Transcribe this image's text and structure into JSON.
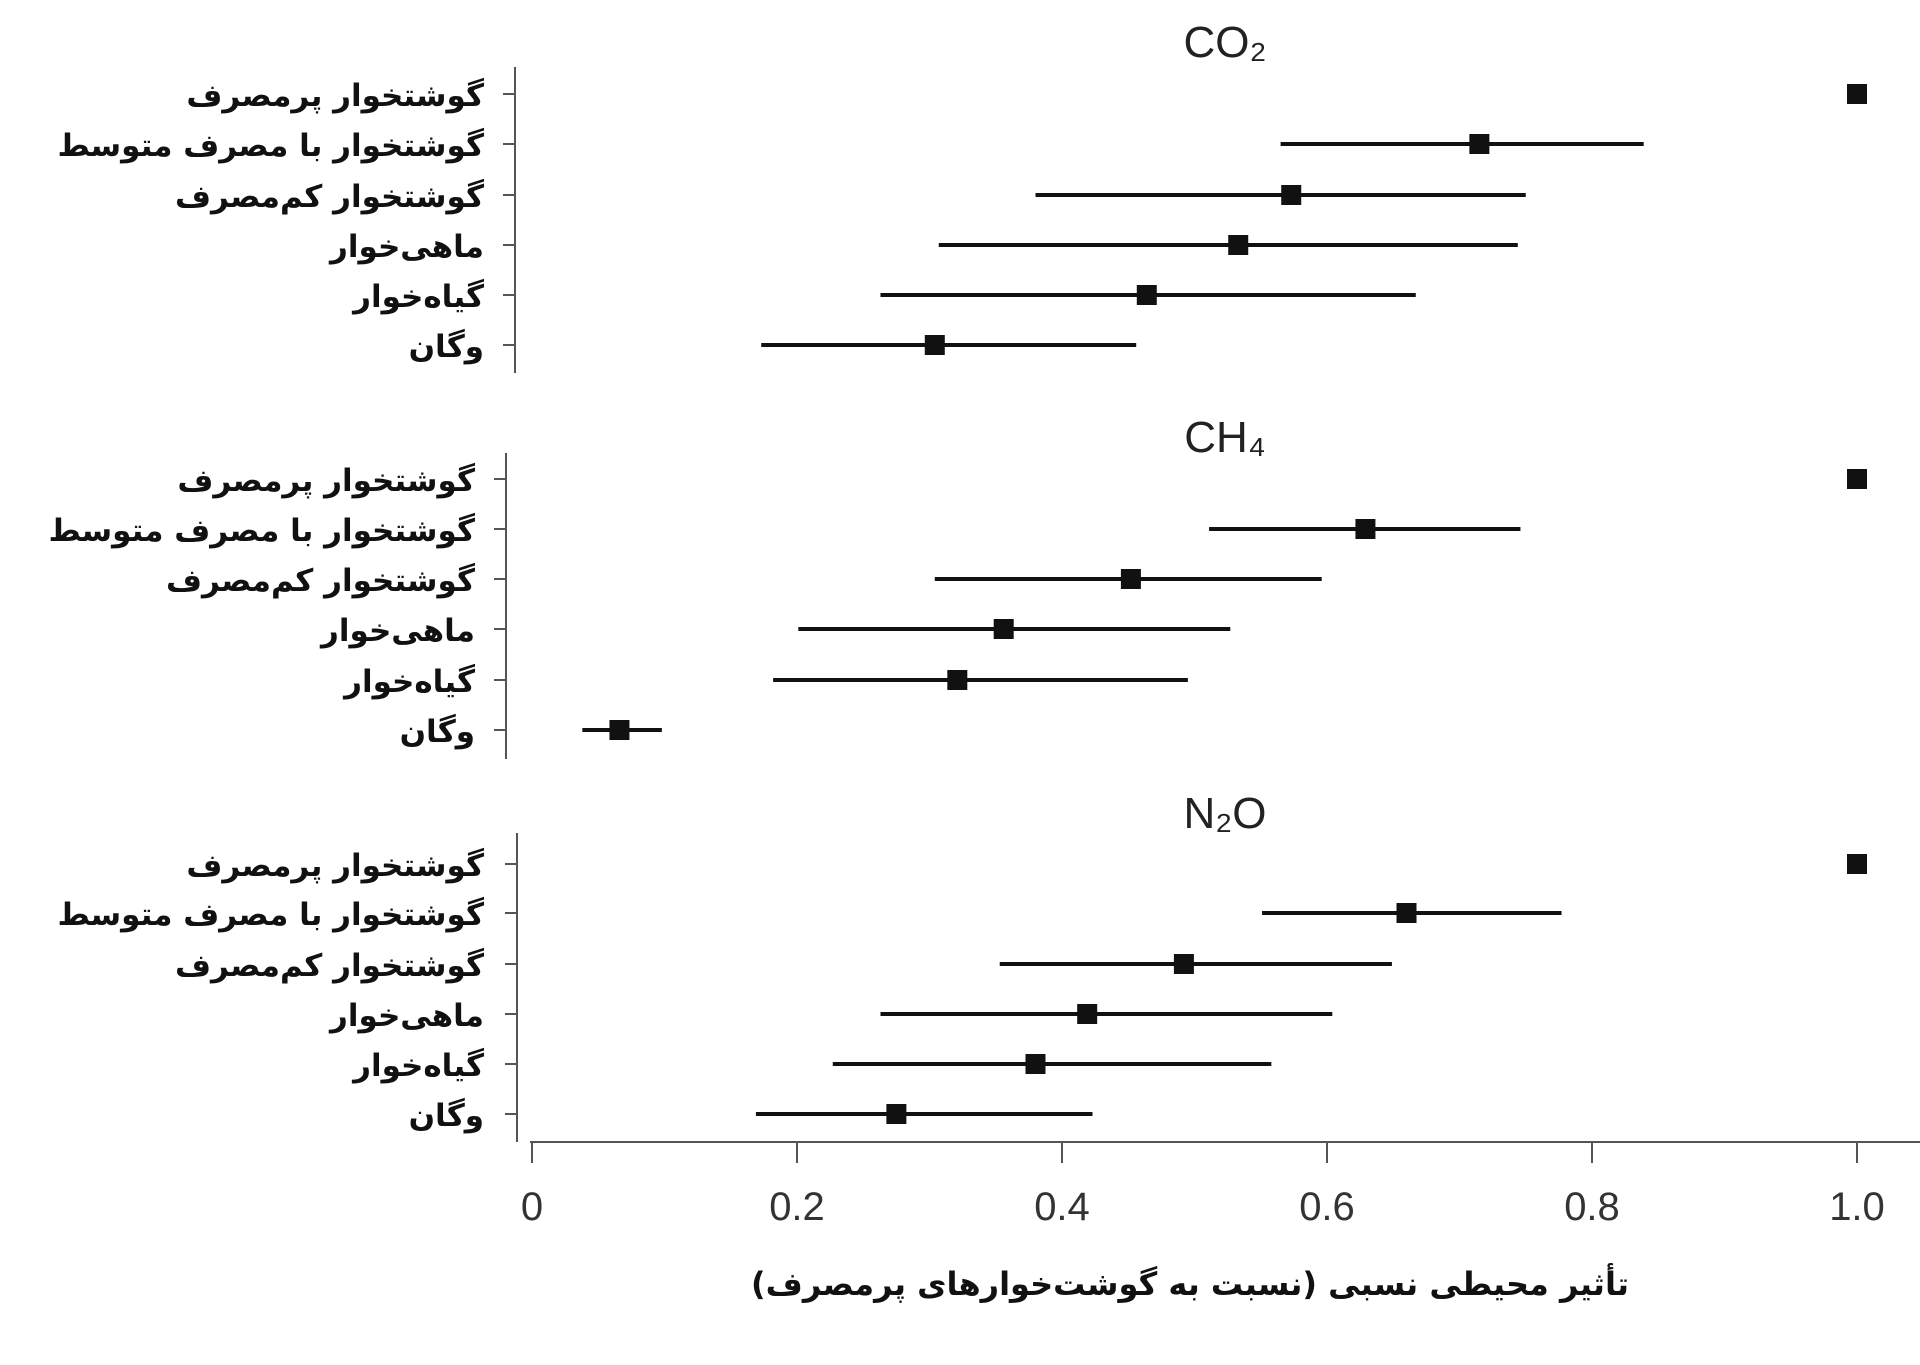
{
  "chart_data": {
    "type": "scatter",
    "subtype": "forest-plot",
    "xlabel": "تأثیر محیطی نسبی (نسبت به گوشت‌خوارهای پرمصرف)",
    "xlim": [
      0,
      1.0
    ],
    "xticks": [
      "0",
      "0.2",
      "0.4",
      "0.6",
      "0.8",
      "1.0"
    ],
    "xtick_values": [
      0,
      0.2,
      0.4,
      0.6,
      0.8,
      1.0
    ],
    "categories": [
      "گوشتخوار پرمصرف",
      "گوشتخوار با مصرف متوسط",
      "گوشتخوار کم‌مصرف",
      "ماهی‌خوار",
      "گیاه‌خوار",
      "وگان"
    ],
    "colors": {
      "marker": "#111111",
      "line": "#111111",
      "axis": "#555555"
    },
    "panels": [
      {
        "title": "CO₂",
        "values": [
          1.0,
          0.715,
          0.573,
          0.533,
          0.464,
          0.304
        ],
        "ci_low": [
          null,
          0.565,
          0.38,
          0.307,
          0.263,
          0.173
        ],
        "ci_high": [
          null,
          0.839,
          0.75,
          0.744,
          0.667,
          0.456
        ]
      },
      {
        "title": "CH₄",
        "values": [
          1.0,
          0.629,
          0.452,
          0.356,
          0.321,
          0.066
        ],
        "ci_low": [
          null,
          0.511,
          0.304,
          0.201,
          0.182,
          0.038
        ],
        "ci_high": [
          null,
          0.746,
          0.596,
          0.527,
          0.495,
          0.098
        ]
      },
      {
        "title": "N₂O",
        "values": [
          1.0,
          0.66,
          0.492,
          0.419,
          0.38,
          0.275
        ],
        "ci_low": [
          null,
          0.551,
          0.353,
          0.263,
          0.227,
          0.169
        ],
        "ci_high": [
          null,
          0.777,
          0.649,
          0.604,
          0.558,
          0.423
        ]
      }
    ]
  }
}
